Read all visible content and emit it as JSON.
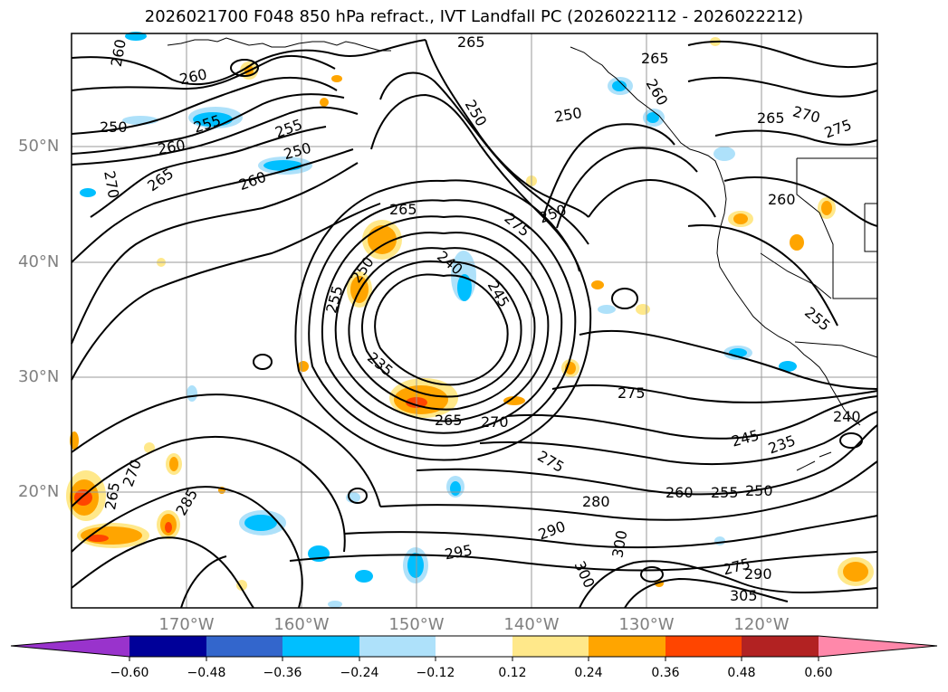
{
  "title": "2026021700 F048 850 hPa refract., IVT Landfall PC (2026022112 - 2026022212)",
  "lat_labels": [
    "50°N",
    "40°N",
    "30°N",
    "20°N"
  ],
  "lon_labels": [
    "170°W",
    "160°W",
    "150°W",
    "140°W",
    "130°W",
    "120°W"
  ],
  "contour_labels": [
    {
      "text": "260"
    },
    {
      "text": "265"
    },
    {
      "text": "265"
    },
    {
      "text": "260"
    },
    {
      "text": "250"
    },
    {
      "text": "255"
    },
    {
      "text": "260"
    },
    {
      "text": "250"
    },
    {
      "text": "255"
    },
    {
      "text": "265"
    },
    {
      "text": "270"
    },
    {
      "text": "275"
    },
    {
      "text": "250"
    },
    {
      "text": "260"
    },
    {
      "text": "250"
    },
    {
      "text": "260"
    },
    {
      "text": "270"
    },
    {
      "text": "265"
    },
    {
      "text": "260"
    },
    {
      "text": "250"
    },
    {
      "text": "275"
    },
    {
      "text": "240"
    },
    {
      "text": "255"
    },
    {
      "text": "245"
    },
    {
      "text": "250"
    },
    {
      "text": "265"
    },
    {
      "text": "235"
    },
    {
      "text": "275"
    },
    {
      "text": "265"
    },
    {
      "text": "270"
    },
    {
      "text": "275"
    },
    {
      "text": "260"
    },
    {
      "text": "255"
    },
    {
      "text": "250"
    },
    {
      "text": "245"
    },
    {
      "text": "235"
    },
    {
      "text": "280"
    },
    {
      "text": "290"
    },
    {
      "text": "300"
    },
    {
      "text": "295"
    },
    {
      "text": "300"
    },
    {
      "text": "275"
    },
    {
      "text": "290"
    },
    {
      "text": "305"
    },
    {
      "text": "265"
    },
    {
      "text": "270"
    },
    {
      "text": "285"
    },
    {
      "text": "240"
    },
    {
      "text": "255"
    }
  ],
  "colorbar": {
    "labels": [
      "−0.60",
      "−0.48",
      "−0.36",
      "−0.24",
      "−0.12",
      "0.12",
      "0.24",
      "0.36",
      "0.48",
      "0.60"
    ],
    "colors": [
      "#9933cc",
      "#000099",
      "#3366cc",
      "#00bfff",
      "#aee1fa",
      "#ffffff",
      "#ffe88a",
      "#ffa500",
      "#ff4500",
      "#b22222",
      "#ff88aa"
    ]
  },
  "fill_colors": {
    "light_blue": "#aee1fa",
    "blue": "#00bfff",
    "yellow": "#ffe88a",
    "orange": "#ffa500",
    "red": "#ff4500"
  }
}
